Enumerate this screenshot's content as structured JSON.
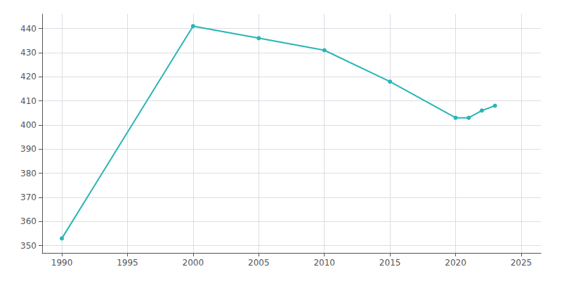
{
  "chart_data": {
    "type": "line",
    "x": [
      1990,
      2000,
      2005,
      2010,
      2015,
      2020,
      2021,
      2022,
      2023
    ],
    "values": [
      353,
      441,
      436,
      431,
      418,
      403,
      403,
      406,
      408
    ],
    "color": "#2ab5b5",
    "marker": "circle",
    "xlim": [
      1988.5,
      2026.5
    ],
    "ylim": [
      347,
      446
    ],
    "xticks": [
      1990,
      1995,
      2000,
      2005,
      2010,
      2015,
      2020,
      2025
    ],
    "yticks": [
      350,
      360,
      370,
      380,
      390,
      400,
      410,
      420,
      430,
      440
    ],
    "grid": true
  }
}
